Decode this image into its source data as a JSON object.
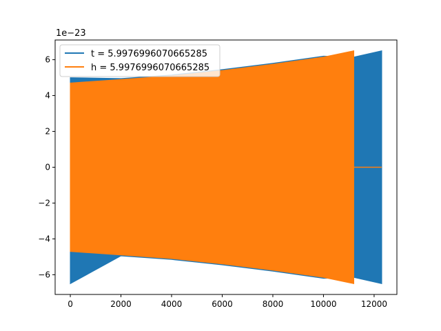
{
  "chart_data": {
    "type": "line",
    "title": "",
    "xlabel": "",
    "ylabel": "",
    "y_offset_label": "1e−23",
    "xlim": [
      -600,
      12900
    ],
    "ylim": [
      -7.1,
      7.1
    ],
    "x_ticks": [
      0,
      2000,
      4000,
      6000,
      8000,
      10000,
      12000
    ],
    "x_tick_labels": [
      "0",
      "2000",
      "4000",
      "6000",
      "8000",
      "10000",
      "12000"
    ],
    "y_ticks": [
      -6,
      -4,
      -2,
      0,
      2,
      4,
      6
    ],
    "y_tick_labels": [
      "−6",
      "−4",
      "−2",
      "0",
      "2",
      "4",
      "6"
    ],
    "grid": false,
    "legend_position": "upper-left",
    "series": [
      {
        "name": "t = 5.9976996070665285",
        "color": "#1f77b4",
        "render": "oscillation-envelope",
        "x": [
          0,
          2000,
          4000,
          6000,
          8000,
          10000,
          11200,
          12300
        ],
        "upper": [
          5.0,
          4.95,
          5.15,
          5.45,
          5.8,
          6.2,
          6.15,
          6.5
        ],
        "lower": [
          -6.5,
          -4.95,
          -5.15,
          -5.45,
          -5.8,
          -6.2,
          -6.15,
          -6.5
        ]
      },
      {
        "name": "h = 5.9976996070665285",
        "color": "#ff7f0e",
        "render": "oscillation-envelope",
        "x": [
          0,
          2000,
          4000,
          6000,
          8000,
          10000,
          11200
        ],
        "upper": [
          4.7,
          4.9,
          5.1,
          5.4,
          5.75,
          6.15,
          6.5
        ],
        "lower": [
          -4.7,
          -4.9,
          -5.1,
          -5.4,
          -5.75,
          -6.15,
          -6.5
        ],
        "tail_x": [
          11200,
          12300
        ],
        "tail_y": [
          0,
          0
        ]
      }
    ]
  }
}
